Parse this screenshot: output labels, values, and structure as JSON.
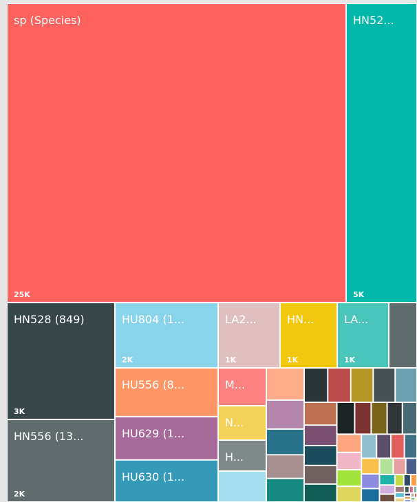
{
  "chart_data": {
    "type": "treemap",
    "categories": [
      "sp (Species)",
      "HN52...",
      "HN528 (849)",
      "HN556 (13...",
      "HU804 (1...",
      "HU556 (8...",
      "HU629 (1...",
      "HU630 (1...",
      "LA2...",
      "HN...",
      "LA...",
      null,
      "M...",
      "N...",
      "H...",
      null,
      null,
      null,
      null,
      null,
      null,
      null,
      null,
      null,
      null,
      null,
      null,
      null,
      null,
      null,
      null,
      null,
      null,
      null,
      null,
      null,
      null,
      null,
      null,
      null,
      null,
      null,
      null,
      null,
      null,
      null,
      null,
      null,
      null,
      null,
      null,
      null,
      null,
      null,
      null,
      null,
      null,
      null,
      null,
      null,
      null,
      null,
      null,
      null,
      null,
      null,
      null,
      null,
      null,
      null
    ],
    "values": [
      25000,
      5222,
      3110,
      2197,
      1660,
      1240,
      1100,
      1071,
      997,
      919,
      830,
      454,
      449,
      408,
      367,
      367,
      300,
      270,
      240,
      220,
      220,
      200,
      195,
      190,
      186,
      185,
      184,
      165,
      160,
      150,
      145,
      140,
      130,
      125,
      120,
      115,
      110,
      105,
      100,
      95,
      90,
      85,
      80,
      75,
      70,
      65,
      60,
      55,
      50,
      45,
      40,
      35,
      30,
      25,
      20,
      18,
      15,
      12,
      10,
      8,
      7,
      6,
      5,
      5,
      4,
      4,
      3,
      3,
      2,
      2
    ],
    "value_labels": [
      "25K",
      "5K",
      "3K",
      "2K",
      "2K",
      null,
      null,
      null,
      "1K",
      "1K",
      "1K",
      null,
      null,
      null,
      null,
      null,
      null,
      null,
      null,
      null,
      null,
      null,
      null,
      null,
      null,
      null,
      null,
      null,
      null,
      null,
      null,
      null,
      null,
      null,
      null,
      null,
      null,
      null,
      null,
      null,
      null,
      null,
      null,
      null,
      null,
      null,
      null,
      null,
      null,
      null,
      null,
      null,
      null,
      null,
      null,
      null,
      null,
      null,
      null,
      null,
      null,
      null,
      null,
      null,
      null,
      null,
      null,
      null,
      null,
      null
    ],
    "colors": [
      "#fd625e",
      "#01b8aa",
      "#374649",
      "#5f6b6d",
      "#8ad4eb",
      "#fe9666",
      "#a66999",
      "#3599b8",
      "#dfbfbf",
      "#f2c80f",
      "#4ac5bb",
      "#5f6b6d",
      "#fb8281",
      "#f4d25a",
      "#7f898a",
      "#a4ddee",
      "#fdab89",
      "#b687ac",
      "#28738a",
      "#a78f8f",
      "#168980",
      "#293537",
      "#bb4a4a",
      "#b59525",
      "#475052",
      "#6a9fb0",
      "#bd7150",
      "#7b4f71",
      "#1b4d5c",
      "#706060",
      "#0f5c55",
      "#1c2325",
      "#7d3231",
      "#796419",
      "#303637",
      "#476a75",
      "#fca77f",
      "#f1b7c9",
      "#a1e23b",
      "#dfd660",
      "#92bfcf",
      "#5c4e6a",
      "#e35f5c",
      "#3e6f84",
      "#f8c04a",
      "#8b8be0",
      "#1a6d9b",
      "#b4e19a",
      "#e7a0a0",
      "#4b5d8a",
      "#20b2aa",
      "#d1b0e0",
      "#6f4f3f",
      "#c4d845",
      "#2e4a62",
      "#ff9e4a",
      "#9e7a7a",
      "#5bbfd6",
      "#e8d08a",
      "#405e4b",
      "#c86b8a",
      "#7fb3a5",
      "#3a3a6a",
      "#d9a066",
      "#6a8fd1",
      "#b0b0b0",
      "#e05050",
      "#5fa35f",
      "#8c6bb1",
      "#f0e442"
    ]
  }
}
